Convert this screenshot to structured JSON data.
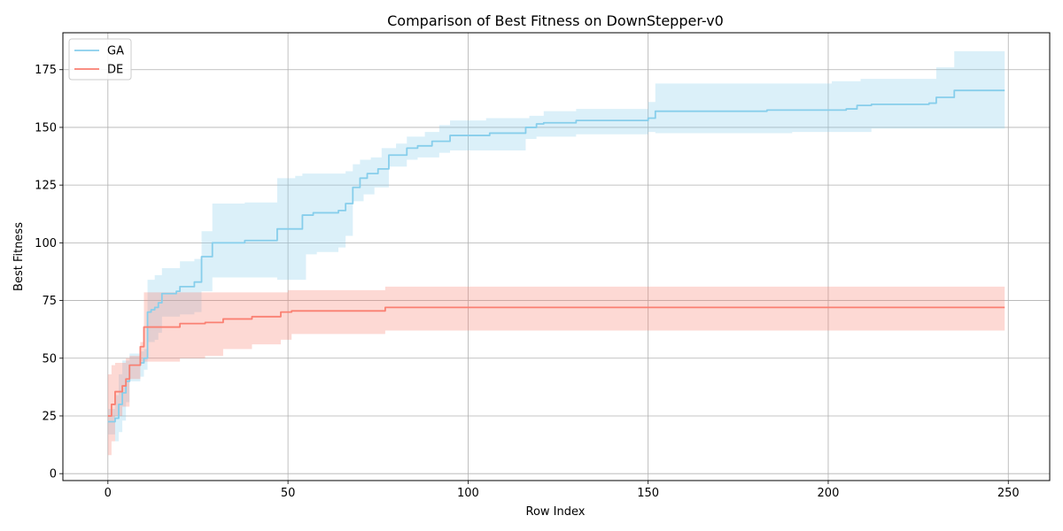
{
  "chart_data": {
    "type": "line",
    "title": "Comparison of Best Fitness on DownStepper-v0",
    "xlabel": "Row Index",
    "ylabel": "Best Fitness",
    "xlim": [
      -12.5,
      261.5
    ],
    "ylim": [
      -3,
      191
    ],
    "xticks": [
      0,
      50,
      100,
      150,
      200,
      250
    ],
    "yticks": [
      0,
      25,
      50,
      75,
      100,
      125,
      150,
      175
    ],
    "grid": true,
    "legend": "top-left",
    "series": [
      {
        "name": "GA",
        "color": "#87ceeb",
        "band_color": "#87ceeb",
        "steps": [
          [
            0,
            22.5
          ],
          [
            2,
            24
          ],
          [
            3,
            30
          ],
          [
            4,
            35
          ],
          [
            5,
            40
          ],
          [
            6,
            47
          ],
          [
            9,
            48
          ],
          [
            10,
            50
          ],
          [
            11,
            70
          ],
          [
            12,
            71
          ],
          [
            13,
            72
          ],
          [
            14,
            74
          ],
          [
            15,
            78
          ],
          [
            19,
            79
          ],
          [
            20,
            81
          ],
          [
            24,
            83
          ],
          [
            26,
            94
          ],
          [
            29,
            100
          ],
          [
            38,
            101
          ],
          [
            47,
            106
          ],
          [
            54,
            112
          ],
          [
            57,
            113
          ],
          [
            64,
            114
          ],
          [
            66,
            117
          ],
          [
            68,
            124
          ],
          [
            70,
            128
          ],
          [
            72,
            130
          ],
          [
            75,
            132
          ],
          [
            78,
            138
          ],
          [
            83,
            141
          ],
          [
            86,
            142
          ],
          [
            90,
            144
          ],
          [
            95,
            146.5
          ],
          [
            106,
            147.5
          ],
          [
            116,
            150
          ],
          [
            119,
            151.5
          ],
          [
            121,
            152
          ],
          [
            130,
            153
          ],
          [
            150,
            154
          ],
          [
            152,
            157
          ],
          [
            183,
            157.5
          ],
          [
            205,
            158
          ],
          [
            208,
            159.5
          ],
          [
            212,
            160
          ],
          [
            228,
            160.5
          ],
          [
            230,
            163
          ],
          [
            235,
            166
          ],
          [
            249,
            166
          ]
        ],
        "upper": [
          [
            0,
            28
          ],
          [
            2,
            34
          ],
          [
            3,
            43
          ],
          [
            4,
            49
          ],
          [
            6,
            52
          ],
          [
            9,
            53
          ],
          [
            10,
            54
          ],
          [
            11,
            84
          ],
          [
            13,
            86
          ],
          [
            15,
            89
          ],
          [
            20,
            92
          ],
          [
            24,
            93
          ],
          [
            26,
            105
          ],
          [
            29,
            117
          ],
          [
            38,
            117.5
          ],
          [
            47,
            128
          ],
          [
            52,
            129
          ],
          [
            54,
            130
          ],
          [
            66,
            131
          ],
          [
            68,
            134
          ],
          [
            70,
            136
          ],
          [
            73,
            137
          ],
          [
            76,
            141
          ],
          [
            80,
            143
          ],
          [
            83,
            146
          ],
          [
            88,
            148
          ],
          [
            92,
            151
          ],
          [
            95,
            153
          ],
          [
            105,
            154
          ],
          [
            117,
            155
          ],
          [
            121,
            157
          ],
          [
            130,
            158
          ],
          [
            150,
            161
          ],
          [
            152,
            169
          ],
          [
            183,
            169
          ],
          [
            201,
            170
          ],
          [
            209,
            171
          ],
          [
            230,
            176
          ],
          [
            235,
            183
          ],
          [
            249,
            183
          ]
        ],
        "lower": [
          [
            0,
            17
          ],
          [
            2,
            14
          ],
          [
            3,
            18
          ],
          [
            4,
            23
          ],
          [
            5,
            31
          ],
          [
            6,
            40
          ],
          [
            9,
            42
          ],
          [
            10,
            45
          ],
          [
            11,
            57
          ],
          [
            13,
            58
          ],
          [
            14,
            61
          ],
          [
            15,
            68
          ],
          [
            20,
            69
          ],
          [
            24,
            70
          ],
          [
            26,
            79
          ],
          [
            29,
            85
          ],
          [
            47,
            84
          ],
          [
            55,
            95
          ],
          [
            58,
            96
          ],
          [
            64,
            98
          ],
          [
            66,
            103
          ],
          [
            68,
            118
          ],
          [
            71,
            121
          ],
          [
            74,
            124
          ],
          [
            78,
            133
          ],
          [
            83,
            136
          ],
          [
            86,
            137
          ],
          [
            92,
            139
          ],
          [
            95,
            140
          ],
          [
            116,
            145
          ],
          [
            119,
            146
          ],
          [
            130,
            147
          ],
          [
            150,
            148
          ],
          [
            152,
            147.5
          ],
          [
            190,
            148
          ],
          [
            212,
            149.5
          ],
          [
            249,
            150
          ]
        ]
      },
      {
        "name": "DE",
        "color": "#fa8072",
        "band_color": "#fa8072",
        "steps": [
          [
            0,
            25
          ],
          [
            1,
            30
          ],
          [
            2,
            35.5
          ],
          [
            4,
            38
          ],
          [
            5,
            41
          ],
          [
            6,
            47
          ],
          [
            9,
            55
          ],
          [
            10,
            63.5
          ],
          [
            20,
            65
          ],
          [
            27,
            65.5
          ],
          [
            32,
            67
          ],
          [
            40,
            68
          ],
          [
            48,
            70
          ],
          [
            51,
            70.5
          ],
          [
            77,
            72
          ],
          [
            249,
            72
          ]
        ],
        "upper": [
          [
            0,
            43
          ],
          [
            1,
            47
          ],
          [
            2,
            48
          ],
          [
            5,
            50
          ],
          [
            6,
            51
          ],
          [
            9,
            57
          ],
          [
            10,
            78.5
          ],
          [
            50,
            79.5
          ],
          [
            77,
            81
          ],
          [
            249,
            81
          ]
        ],
        "lower": [
          [
            0,
            8
          ],
          [
            1,
            14
          ],
          [
            2,
            25
          ],
          [
            4,
            29
          ],
          [
            6,
            41
          ],
          [
            9,
            48.5
          ],
          [
            20,
            50
          ],
          [
            27,
            51
          ],
          [
            32,
            54
          ],
          [
            40,
            56
          ],
          [
            48,
            58
          ],
          [
            51,
            60.5
          ],
          [
            77,
            62
          ],
          [
            249,
            62
          ]
        ]
      }
    ]
  }
}
